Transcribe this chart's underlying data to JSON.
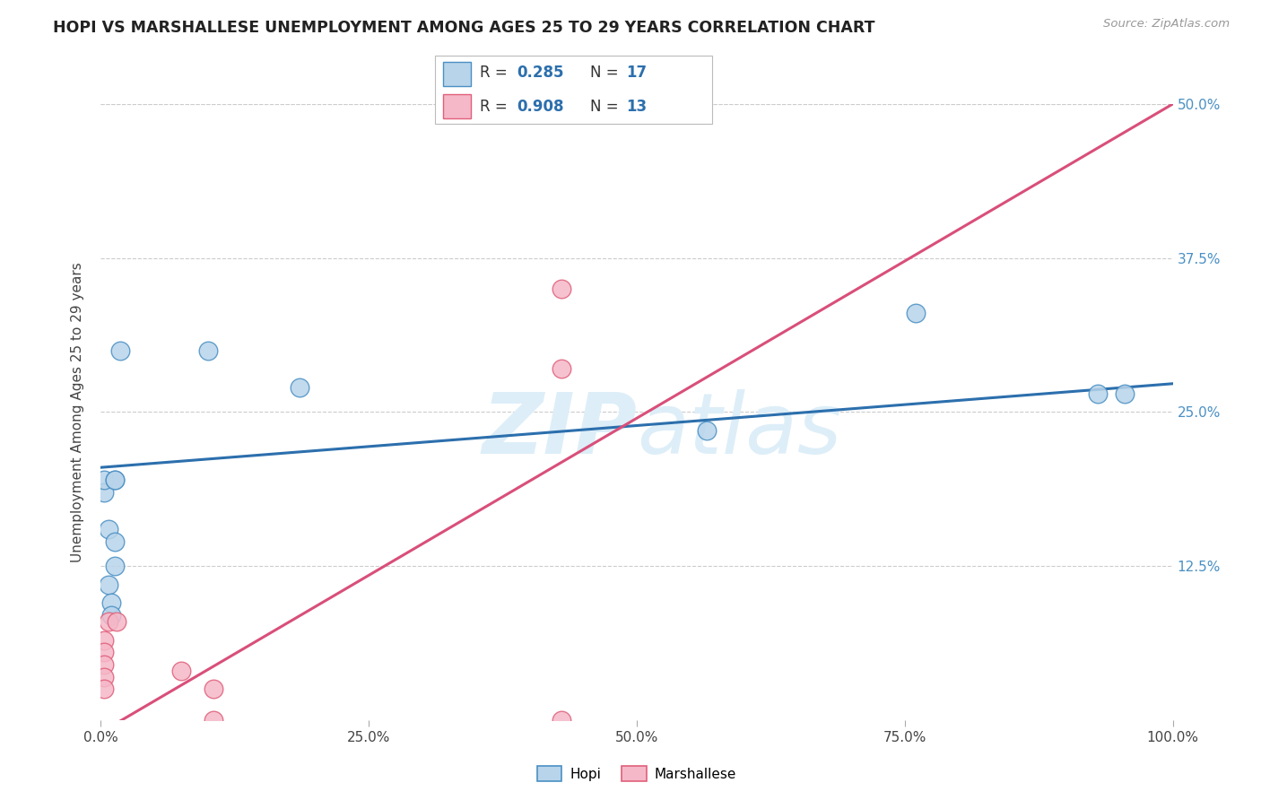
{
  "title": "HOPI VS MARSHALLESE UNEMPLOYMENT AMONG AGES 25 TO 29 YEARS CORRELATION CHART",
  "source": "Source: ZipAtlas.com",
  "ylabel": "Unemployment Among Ages 25 to 29 years",
  "hopi_scatter_fill": "#b8d4ea",
  "hopi_scatter_edge": "#4a90c4",
  "marshallese_scatter_fill": "#f5b8c8",
  "marshallese_scatter_edge": "#e0607a",
  "hopi_line_color": "#2c6fad",
  "marshallese_line_color": "#d94f7a",
  "background_color": "#ffffff",
  "grid_color": "#cccccc",
  "watermark_color": "#ddeef8",
  "xlim": [
    0.0,
    1.0
  ],
  "ylim": [
    0.0,
    0.5
  ],
  "xtick_positions": [
    0.0,
    0.25,
    0.5,
    0.75,
    1.0
  ],
  "xtick_labels": [
    "0.0%",
    "25.0%",
    "50.0%",
    "75.0%",
    "100.0%"
  ],
  "ytick_positions": [
    0.125,
    0.25,
    0.375,
    0.5
  ],
  "ytick_labels": [
    "12.5%",
    "25.0%",
    "37.5%",
    "50.0%"
  ],
  "hopi_x": [
    0.003,
    0.003,
    0.007,
    0.007,
    0.01,
    0.01,
    0.013,
    0.013,
    0.013,
    0.013,
    0.018,
    0.1,
    0.185,
    0.565,
    0.76,
    0.93,
    0.955
  ],
  "hopi_y": [
    0.185,
    0.195,
    0.155,
    0.11,
    0.095,
    0.085,
    0.195,
    0.145,
    0.125,
    0.195,
    0.3,
    0.3,
    0.27,
    0.235,
    0.33,
    0.265,
    0.265
  ],
  "marshallese_x": [
    0.003,
    0.003,
    0.003,
    0.003,
    0.003,
    0.007,
    0.015,
    0.075,
    0.105,
    0.105,
    0.43,
    0.43,
    0.43
  ],
  "marshallese_y": [
    0.065,
    0.055,
    0.045,
    0.035,
    0.025,
    0.08,
    0.08,
    0.04,
    0.0,
    0.025,
    0.35,
    0.285,
    0.0
  ],
  "hopi_trend_x": [
    0.0,
    1.0
  ],
  "hopi_trend_y": [
    0.205,
    0.273
  ],
  "marsh_trend_x": [
    0.0,
    1.0
  ],
  "marsh_trend_y": [
    -0.01,
    0.5
  ],
  "legend_hopi_R": "0.285",
  "legend_hopi_N": "17",
  "legend_marsh_R": "0.908",
  "legend_marsh_N": "13",
  "tick_color": "#4a90c4"
}
